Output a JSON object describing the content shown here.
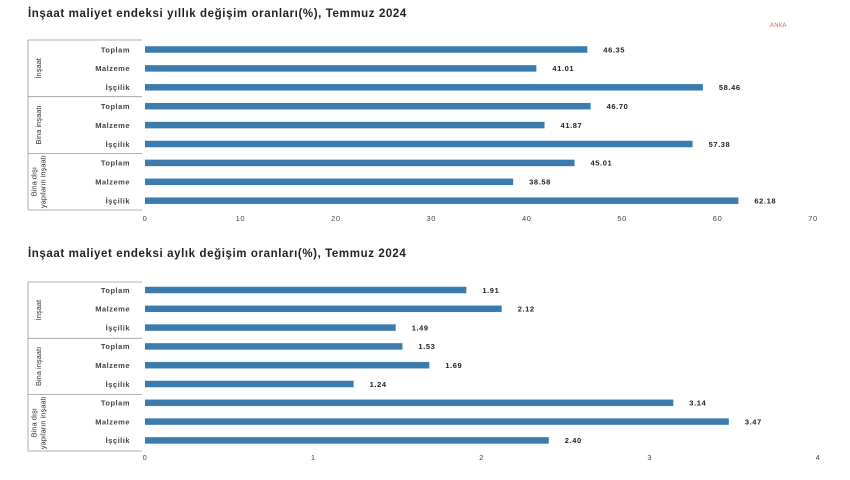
{
  "brand": {
    "watermark": "ANKA",
    "bar_color": "#3b7cb0"
  },
  "chart_data": [
    {
      "type": "bar",
      "orientation": "horizontal",
      "title": "İnşaat maliyet endeksi yıllık değişim oranları(%), Temmuz 2024",
      "groups": [
        {
          "name": "İnşaat",
          "lines": [
            "İnşaat"
          ],
          "categories": [
            "Toplam",
            "Malzeme",
            "İşçilik"
          ],
          "values": [
            46.35,
            41.01,
            58.46
          ],
          "labels": [
            "46.35",
            "41.01",
            "58.46"
          ]
        },
        {
          "name": "Bina inşaatı",
          "lines": [
            "Bina inşaatı"
          ],
          "categories": [
            "Toplam",
            "Malzeme",
            "İşçilik"
          ],
          "values": [
            46.7,
            41.87,
            57.38
          ],
          "labels": [
            "46.70",
            "41.87",
            "57.38"
          ]
        },
        {
          "name": "Bina dışı yapıların inşaatı",
          "lines": [
            "Bina dışı",
            "yapıların inşaatı"
          ],
          "categories": [
            "Toplam",
            "Malzeme",
            "İşçilik"
          ],
          "values": [
            45.01,
            38.58,
            62.18
          ],
          "labels": [
            "45.01",
            "38.58",
            "62.18"
          ]
        }
      ],
      "xlim": [
        0,
        70
      ],
      "xticks": [
        "0",
        "10",
        "20",
        "30",
        "40",
        "50",
        "60",
        "70"
      ]
    },
    {
      "type": "bar",
      "orientation": "horizontal",
      "title": "İnşaat maliyet endeksi aylık değişim oranları(%), Temmuz 2024",
      "groups": [
        {
          "name": "İnşaat",
          "lines": [
            "İnşaat"
          ],
          "categories": [
            "Toplam",
            "Malzeme",
            "İşçilik"
          ],
          "values": [
            1.91,
            2.12,
            1.49
          ],
          "labels": [
            "1.91",
            "2.12",
            "1.49"
          ]
        },
        {
          "name": "Bina inşaatı",
          "lines": [
            "Bina inşaatı"
          ],
          "categories": [
            "Toplam",
            "Malzeme",
            "İşçilik"
          ],
          "values": [
            1.53,
            1.69,
            1.24
          ],
          "labels": [
            "1.53",
            "1.69",
            "1.24"
          ]
        },
        {
          "name": "Bina dışı yapıların inşaatı",
          "lines": [
            "Bina dışı",
            "yapıların inşaatı"
          ],
          "categories": [
            "Toplam",
            "Malzeme",
            "İşçilik"
          ],
          "values": [
            3.14,
            3.47,
            2.4
          ],
          "labels": [
            "3.14",
            "3.47",
            "2.40"
          ]
        }
      ],
      "xlim": [
        0,
        4
      ],
      "xticks": [
        "0",
        "1",
        "2",
        "3",
        "4"
      ]
    }
  ]
}
